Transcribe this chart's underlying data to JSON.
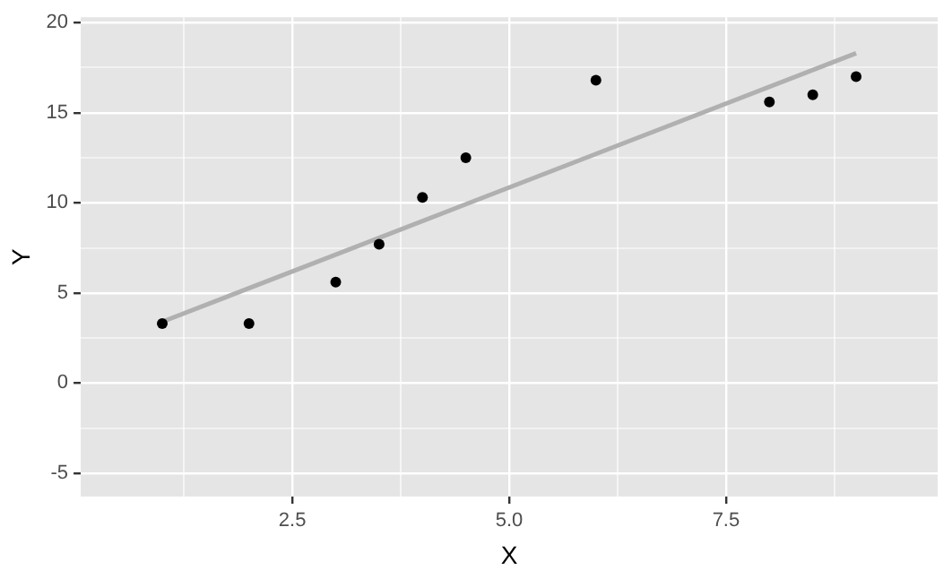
{
  "chart_data": {
    "type": "scatter",
    "xlabel": "X",
    "ylabel": "Y",
    "xlim": [
      0.06,
      9.94
    ],
    "ylim": [
      -6.3,
      20.3
    ],
    "xticks": [
      {
        "value": 1.25,
        "label": null
      },
      2.5,
      {
        "value": 3.75,
        "label": null
      },
      {
        "value": 5,
        "label": "5.0"
      },
      {
        "value": 6.25,
        "label": null
      },
      7.5,
      {
        "value": 8.75,
        "label": null
      }
    ],
    "yticks": [
      -5,
      {
        "value": -2.5,
        "label": null
      },
      0,
      {
        "value": 2.5,
        "label": null
      },
      5,
      {
        "value": 7.5,
        "label": null
      },
      10,
      {
        "value": 12.5,
        "label": null
      },
      15,
      {
        "value": 17.5,
        "label": null
      },
      20
    ],
    "grid": true,
    "marker": "circle",
    "series": [
      {
        "color": "#000000",
        "x": [
          1,
          2,
          3,
          3.5,
          4,
          4.5,
          6,
          8,
          8.5,
          9
        ],
        "values": [
          3.3,
          3.3,
          5.6,
          7.7,
          10.3,
          12.5,
          16.8,
          15.6,
          16.0,
          17.0
        ]
      },
      {
        "type": "line",
        "marker": "none",
        "color": "#b0b0b0",
        "x": [
          1,
          9
        ],
        "values": [
          3.4,
          18.3
        ]
      }
    ]
  }
}
